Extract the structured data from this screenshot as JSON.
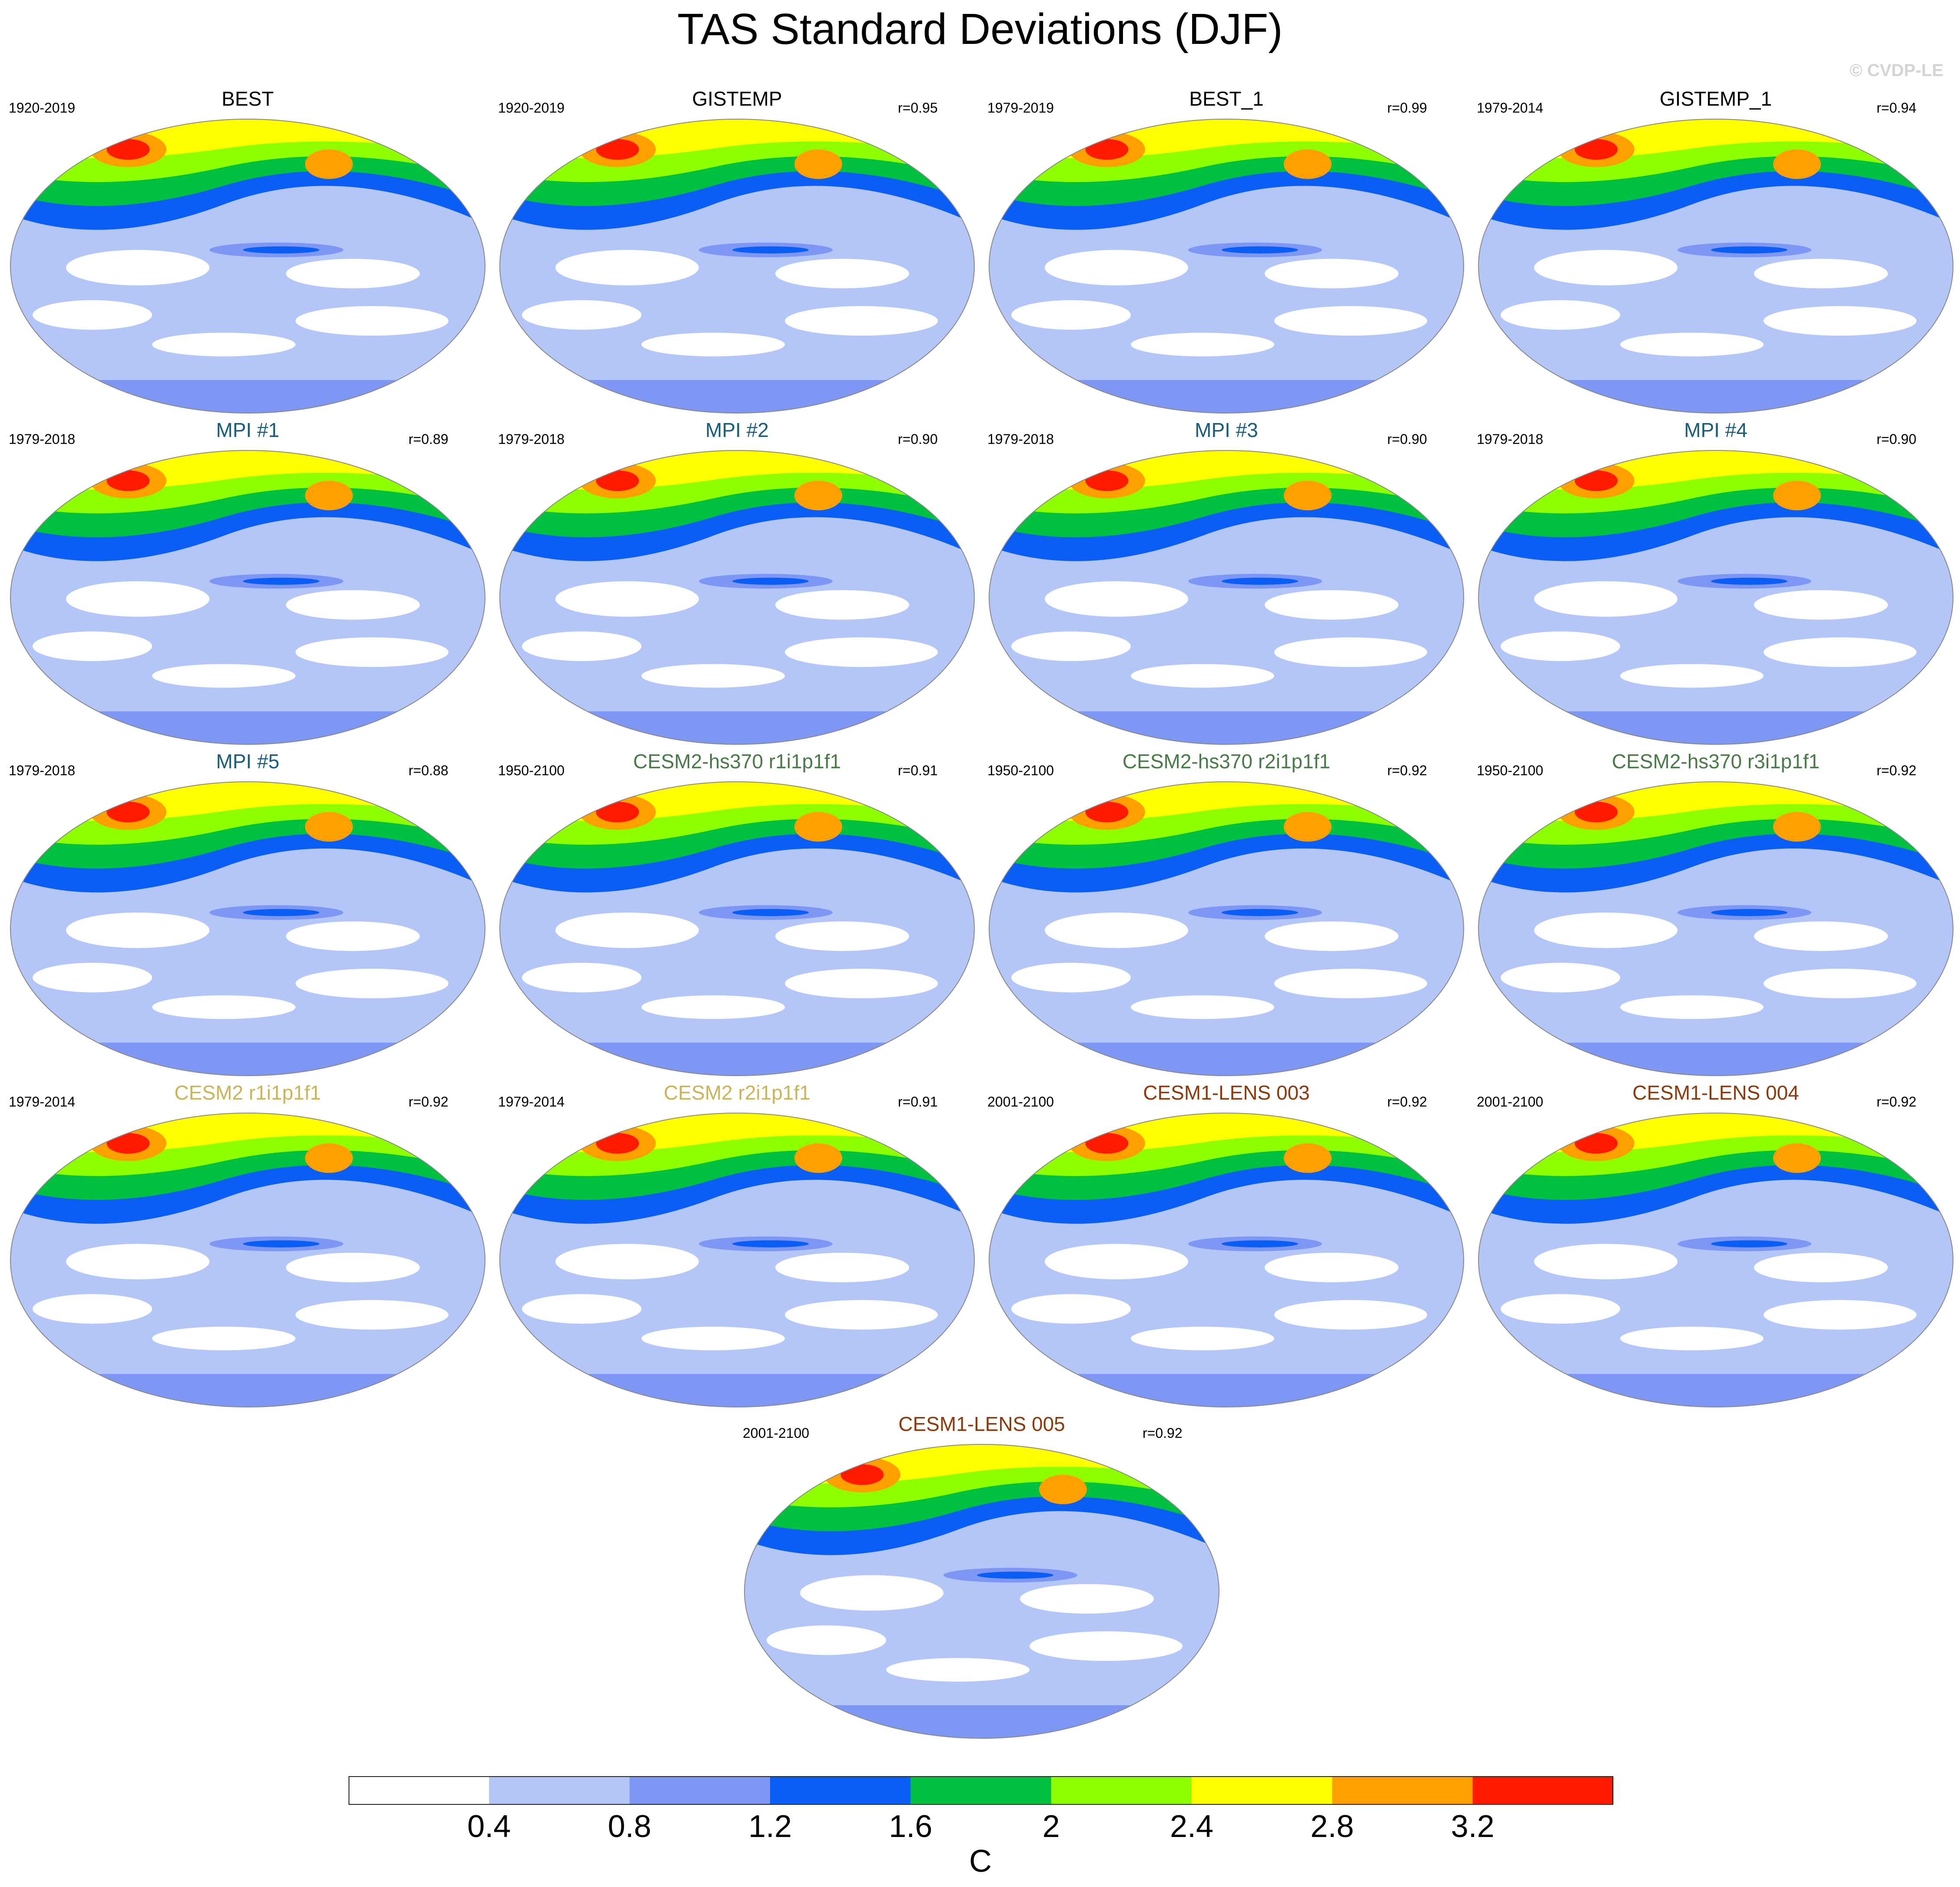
{
  "figure": {
    "title": "TAS Standard Deviations (DJF)",
    "watermark": "© CVDP-LE"
  },
  "chart_data": {
    "type": "heatmap",
    "map_projection": "global robinson-like",
    "panels": [
      {
        "title": "BEST",
        "period": "1920-2019",
        "r": "",
        "title_color": "#000000",
        "row": 0,
        "col": 0
      },
      {
        "title": "GISTEMP",
        "period": "1920-2019",
        "r": "r=0.95",
        "title_color": "#000000",
        "row": 0,
        "col": 1
      },
      {
        "title": "BEST_1",
        "period": "1979-2019",
        "r": "r=0.99",
        "title_color": "#000000",
        "row": 0,
        "col": 2
      },
      {
        "title": "GISTEMP_1",
        "period": "1979-2014",
        "r": "r=0.94",
        "title_color": "#000000",
        "row": 0,
        "col": 3
      },
      {
        "title": "MPI #1",
        "period": "1979-2018",
        "r": "r=0.89",
        "title_color": "#1a5c7a",
        "row": 1,
        "col": 0
      },
      {
        "title": "MPI #2",
        "period": "1979-2018",
        "r": "r=0.90",
        "title_color": "#1a5c7a",
        "row": 1,
        "col": 1
      },
      {
        "title": "MPI #3",
        "period": "1979-2018",
        "r": "r=0.90",
        "title_color": "#1a5c7a",
        "row": 1,
        "col": 2
      },
      {
        "title": "MPI #4",
        "period": "1979-2018",
        "r": "r=0.90",
        "title_color": "#1a5c7a",
        "row": 1,
        "col": 3
      },
      {
        "title": "MPI #5",
        "period": "1979-2018",
        "r": "r=0.88",
        "title_color": "#1a5c7a",
        "row": 2,
        "col": 0
      },
      {
        "title": "CESM2-hs370 r1i1p1f1",
        "period": "1950-2100",
        "r": "r=0.91",
        "title_color": "#4a7a4a",
        "row": 2,
        "col": 1
      },
      {
        "title": "CESM2-hs370 r2i1p1f1",
        "period": "1950-2100",
        "r": "r=0.92",
        "title_color": "#4a7a4a",
        "row": 2,
        "col": 2
      },
      {
        "title": "CESM2-hs370 r3i1p1f1",
        "period": "1950-2100",
        "r": "r=0.92",
        "title_color": "#4a7a4a",
        "row": 2,
        "col": 3
      },
      {
        "title": "CESM2 r1i1p1f1",
        "period": "1979-2014",
        "r": "r=0.92",
        "title_color": "#c9b45c",
        "row": 3,
        "col": 0
      },
      {
        "title": "CESM2 r2i1p1f1",
        "period": "1979-2014",
        "r": "r=0.91",
        "title_color": "#c9b45c",
        "row": 3,
        "col": 1
      },
      {
        "title": "CESM1-LENS 003",
        "period": "2001-2100",
        "r": "r=0.92",
        "title_color": "#8b3a0e",
        "row": 3,
        "col": 2
      },
      {
        "title": "CESM1-LENS 004",
        "period": "2001-2100",
        "r": "r=0.92",
        "title_color": "#8b3a0e",
        "row": 3,
        "col": 3
      },
      {
        "title": "CESM1-LENS 005",
        "period": "2001-2100",
        "r": "r=0.92",
        "title_color": "#8b3a0e",
        "row": 4,
        "col": 1.5
      }
    ],
    "colorbar": {
      "levels": [
        "0.4",
        "0.8",
        "1.2",
        "1.6",
        "2",
        "2.4",
        "2.8",
        "3.2"
      ],
      "colors": [
        "#ffffff",
        "#b4c6f8",
        "#7e97f5",
        "#0a5ef5",
        "#00c040",
        "#8fff00",
        "#ffff00",
        "#ffa000",
        "#ff1a00"
      ],
      "unit": "C"
    }
  }
}
